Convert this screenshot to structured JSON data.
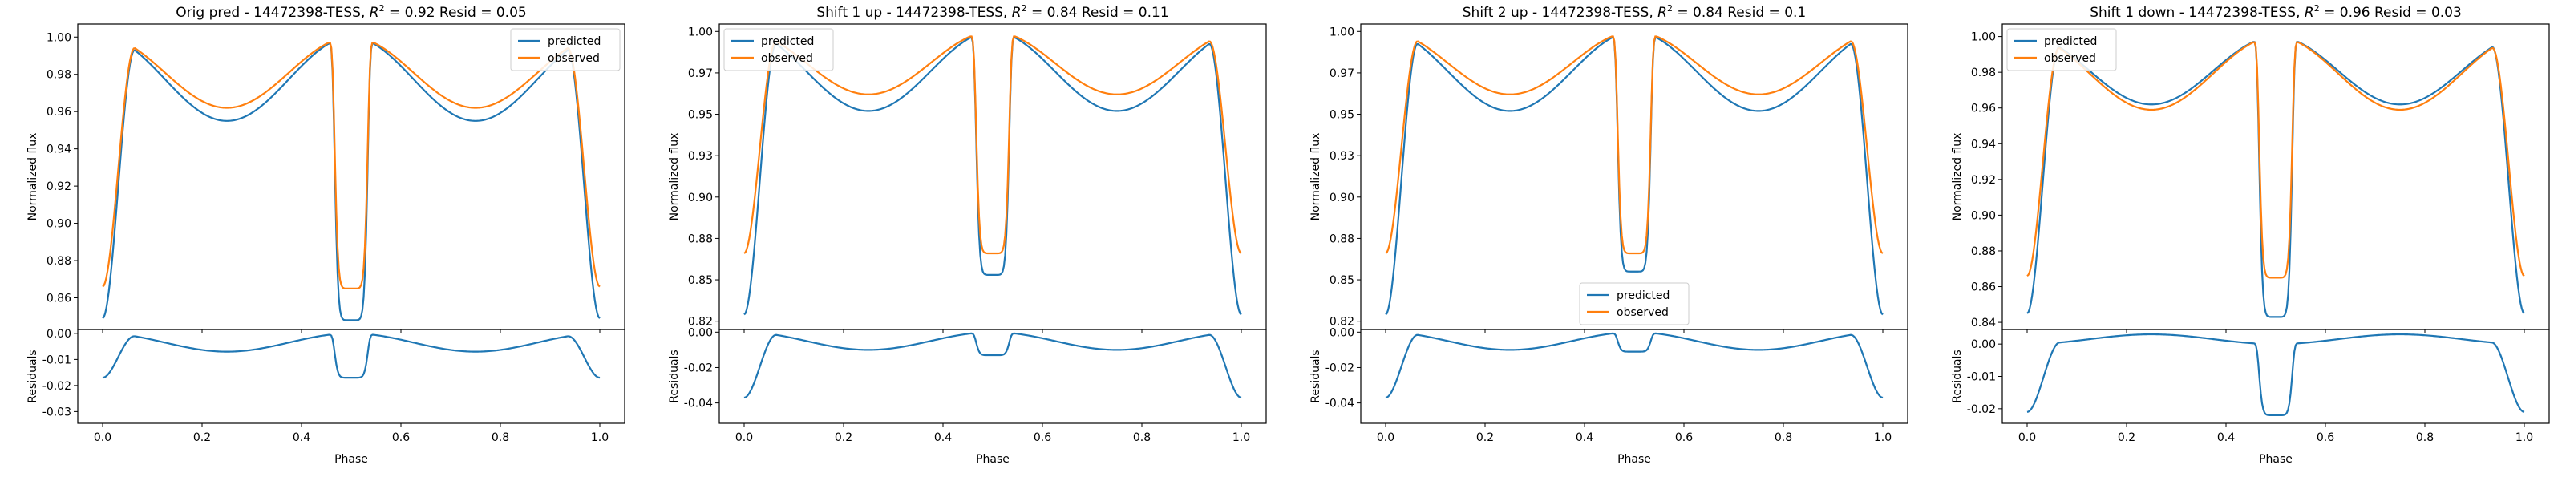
{
  "chart_data": [
    {
      "type": "line",
      "title": "Orig pred - 14472398-TESS, $R^2 = 0.92$ Resid = 0.05",
      "title_text": {
        "pre": "Orig pred - 14472398-TESS, ",
        "r2": "0.92",
        "post": " Resid = 0.05"
      },
      "xlabel": "Phase",
      "ylabel": "Normalized flux",
      "resid_ylabel": "Residuals",
      "xlim": [
        -0.05,
        1.05
      ],
      "ylim": [
        0.843,
        1.007
      ],
      "resid_ylim": [
        -0.0345,
        0.0015
      ],
      "xticks": [
        0.0,
        0.2,
        0.4,
        0.6,
        0.8,
        1.0
      ],
      "yticks": [
        0.86,
        0.88,
        0.9,
        0.92,
        0.94,
        0.96,
        0.98,
        1.0
      ],
      "resid_yticks": [
        0.0,
        -0.01,
        -0.02,
        -0.03
      ],
      "legend": "top-right",
      "series": [
        {
          "name": "predicted",
          "color": "#1f77b4",
          "min": 0.849,
          "shoulder": 0.955,
          "eclipse": 0.848
        },
        {
          "name": "observed",
          "color": "#ff7f0e",
          "min": 0.866,
          "shoulder": 0.962,
          "eclipse": 0.865
        }
      ]
    },
    {
      "type": "line",
      "title": "Shift 1 up - 14472398-TESS, $R^2 = 0.84$ Resid = 0.11",
      "title_text": {
        "pre": "Shift 1 up - 14472398-TESS, ",
        "r2": "0.84",
        "post": " Resid = 0.11"
      },
      "xlabel": "Phase",
      "ylabel": "Normalized flux",
      "resid_ylabel": "Residuals",
      "xlim": [
        -0.05,
        1.05
      ],
      "ylim": [
        0.82,
        1.0045
      ],
      "resid_ylim": [
        -0.0515,
        0.0015
      ],
      "xticks": [
        0.0,
        0.2,
        0.4,
        0.6,
        0.8,
        1.0
      ],
      "yticks": [
        0.825,
        0.85,
        0.875,
        0.9,
        0.925,
        0.95,
        0.975,
        1.0
      ],
      "resid_yticks": [
        0.0,
        -0.02,
        -0.04
      ],
      "legend": "top-left",
      "series": [
        {
          "name": "predicted",
          "color": "#1f77b4",
          "min": 0.829,
          "shoulder": 0.952,
          "eclipse": 0.853
        },
        {
          "name": "observed",
          "color": "#ff7f0e",
          "min": 0.866,
          "shoulder": 0.962,
          "eclipse": 0.866
        }
      ]
    },
    {
      "type": "line",
      "title": "Shift 2 up - 14472398-TESS, $R^2 = 0.84$ Resid = 0.1",
      "title_text": {
        "pre": "Shift 2 up - 14472398-TESS, ",
        "r2": "0.84",
        "post": " Resid = 0.1"
      },
      "xlabel": "Phase",
      "ylabel": "Normalized flux",
      "resid_ylabel": "Residuals",
      "xlim": [
        -0.05,
        1.05
      ],
      "ylim": [
        0.82,
        1.0045
      ],
      "resid_ylim": [
        -0.0515,
        0.0015
      ],
      "xticks": [
        0.0,
        0.2,
        0.4,
        0.6,
        0.8,
        1.0
      ],
      "yticks": [
        0.825,
        0.85,
        0.875,
        0.9,
        0.925,
        0.95,
        0.975,
        1.0
      ],
      "resid_yticks": [
        0.0,
        -0.02,
        -0.04
      ],
      "legend": "bottom-center",
      "series": [
        {
          "name": "predicted",
          "color": "#1f77b4",
          "min": 0.829,
          "shoulder": 0.952,
          "eclipse": 0.855
        },
        {
          "name": "observed",
          "color": "#ff7f0e",
          "min": 0.866,
          "shoulder": 0.962,
          "eclipse": 0.866
        }
      ]
    },
    {
      "type": "line",
      "title": "Shift 1 down - 14472398-TESS, $R^2 = 0.96$ Resid = 0.03",
      "title_text": {
        "pre": "Shift 1 down - 14472398-TESS, ",
        "r2": "0.96",
        "post": " Resid = 0.03"
      },
      "xlabel": "Phase",
      "ylabel": "Normalized flux",
      "resid_ylabel": "Residuals",
      "xlim": [
        -0.05,
        1.05
      ],
      "ylim": [
        0.836,
        1.007
      ],
      "resid_ylim": [
        -0.0245,
        0.0045
      ],
      "xticks": [
        0.0,
        0.2,
        0.4,
        0.6,
        0.8,
        1.0
      ],
      "yticks": [
        0.84,
        0.86,
        0.88,
        0.9,
        0.92,
        0.94,
        0.96,
        0.98,
        1.0
      ],
      "resid_yticks": [
        0.0,
        -0.01,
        -0.02
      ],
      "legend": "top-left",
      "series": [
        {
          "name": "predicted",
          "color": "#1f77b4",
          "min": 0.845,
          "shoulder": 0.962,
          "eclipse": 0.843
        },
        {
          "name": "observed",
          "color": "#ff7f0e",
          "min": 0.866,
          "shoulder": 0.959,
          "eclipse": 0.865
        }
      ]
    }
  ]
}
